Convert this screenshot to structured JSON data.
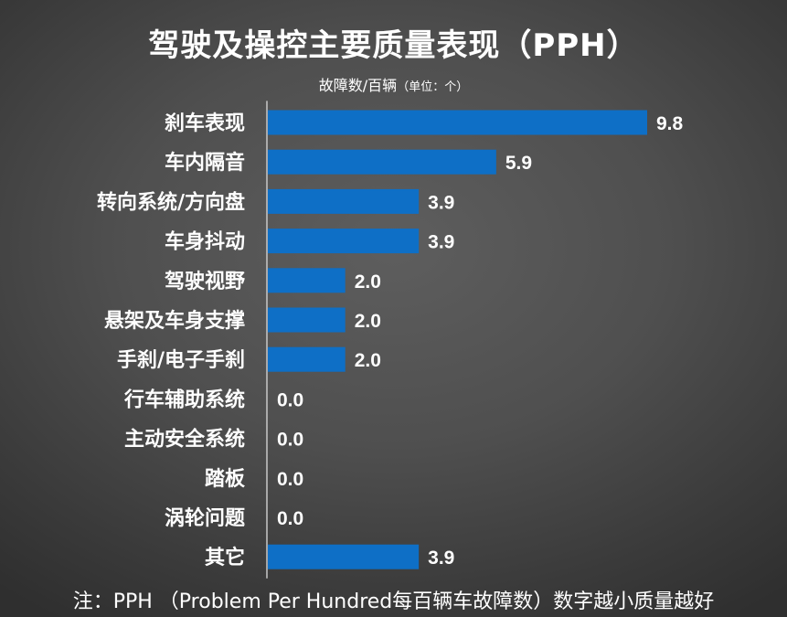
{
  "chart_data": {
    "type": "bar",
    "orientation": "horizontal",
    "title": "驾驶及操控主要质量表现（PPH）",
    "unit_label": "故障数/百辆",
    "unit_note": "（单位：个）",
    "categories": [
      "刹车表现",
      "车内隔音",
      "转向系统/方向盘",
      "车身抖动",
      "驾驶视野",
      "悬架及车身支撑",
      "手刹/电子手刹",
      "行车辅助系统",
      "主动安全系统",
      "踏板",
      "涡轮问题",
      "其它"
    ],
    "values": [
      9.8,
      5.9,
      3.9,
      3.9,
      2.0,
      2.0,
      2.0,
      0.0,
      0.0,
      0.0,
      0.0,
      3.9
    ],
    "value_labels": [
      "9.8",
      "5.9",
      "3.9",
      "3.9",
      "2.0",
      "2.0",
      "2.0",
      "0.0",
      "0.0",
      "0.0",
      "0.0",
      "3.9"
    ],
    "xlim": [
      0,
      9.8
    ],
    "grid": false,
    "legend": "none",
    "bar_color": "#0e6fc6",
    "axis_line_color": "#c8c8c8",
    "note": "注：PPH （Problem Per Hundred每百辆车故障数）数字越小质量越好"
  }
}
